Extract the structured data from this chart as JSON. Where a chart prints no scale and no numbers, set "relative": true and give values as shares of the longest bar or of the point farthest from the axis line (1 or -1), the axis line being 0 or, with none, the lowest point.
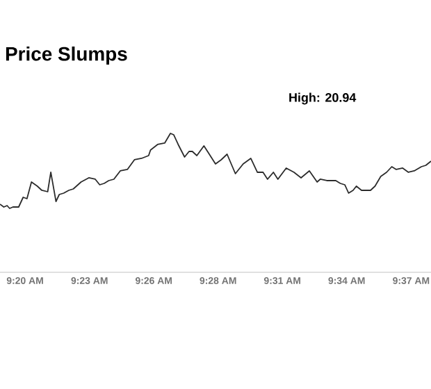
{
  "chart_data": {
    "type": "line",
    "title": "Price Slumps",
    "annotations": [
      "High: 20.94"
    ],
    "relative": true,
    "color": "#2b2b2b",
    "xlim": [
      9.3149,
      9.6313
    ],
    "xticks": [
      {
        "value": 9.3333,
        "label": "9:20 AM"
      },
      {
        "value": 9.3806,
        "label": "9:23 AM"
      },
      {
        "value": 9.4278,
        "label": "9:26 AM"
      },
      {
        "value": 9.475,
        "label": "9:28 AM"
      },
      {
        "value": 9.5222,
        "label": "9:31 AM"
      },
      {
        "value": 9.5694,
        "label": "9:34 AM"
      },
      {
        "value": 9.6167,
        "label": "9:37 AM"
      }
    ],
    "x": [
      9.3149,
      9.3177,
      9.3201,
      9.322,
      9.3244,
      9.3286,
      9.3319,
      9.3347,
      9.338,
      9.3423,
      9.3456,
      9.3499,
      9.3522,
      9.356,
      9.3584,
      9.3617,
      9.3654,
      9.3687,
      9.3744,
      9.3801,
      9.3848,
      9.3881,
      9.3914,
      9.3947,
      9.3985,
      9.4032,
      9.4084,
      9.4136,
      9.4188,
      9.424,
      9.4254,
      9.4306,
      9.4358,
      9.44,
      9.4424,
      9.4457,
      9.4504,
      9.4537,
      9.4561,
      9.4594,
      9.4646,
      9.4679,
      9.4731,
      9.4773,
      9.4816,
      9.4877,
      9.4934,
      9.499,
      9.5038,
      9.508,
      9.5113,
      9.5156,
      9.5189,
      9.525,
      9.5307,
      9.5359,
      9.542,
      9.5477,
      9.55,
      9.5548,
      9.5614,
      9.5647,
      9.568,
      9.5708,
      9.5741,
      9.5765,
      9.5803,
      9.5869,
      9.5902,
      9.5944,
      9.5987,
      9.6025,
      9.6058,
      9.6105,
      9.6147,
      9.619,
      9.6242,
      9.6275,
      9.6313
    ],
    "values": [
      0.49,
      0.47,
      0.48,
      0.46,
      0.47,
      0.47,
      0.54,
      0.53,
      0.65,
      0.62,
      0.59,
      0.58,
      0.72,
      0.51,
      0.56,
      0.57,
      0.59,
      0.6,
      0.65,
      0.68,
      0.67,
      0.63,
      0.64,
      0.66,
      0.67,
      0.73,
      0.74,
      0.81,
      0.82,
      0.84,
      0.88,
      0.92,
      0.93,
      1,
      0.99,
      0.92,
      0.83,
      0.87,
      0.87,
      0.84,
      0.91,
      0.86,
      0.78,
      0.81,
      0.85,
      0.71,
      0.78,
      0.82,
      0.72,
      0.72,
      0.67,
      0.72,
      0.67,
      0.75,
      0.72,
      0.68,
      0.73,
      0.65,
      0.67,
      0.66,
      0.66,
      0.64,
      0.63,
      0.57,
      0.59,
      0.62,
      0.59,
      0.59,
      0.62,
      0.69,
      0.72,
      0.76,
      0.74,
      0.75,
      0.72,
      0.73,
      0.76,
      0.77,
      0.8
    ]
  }
}
